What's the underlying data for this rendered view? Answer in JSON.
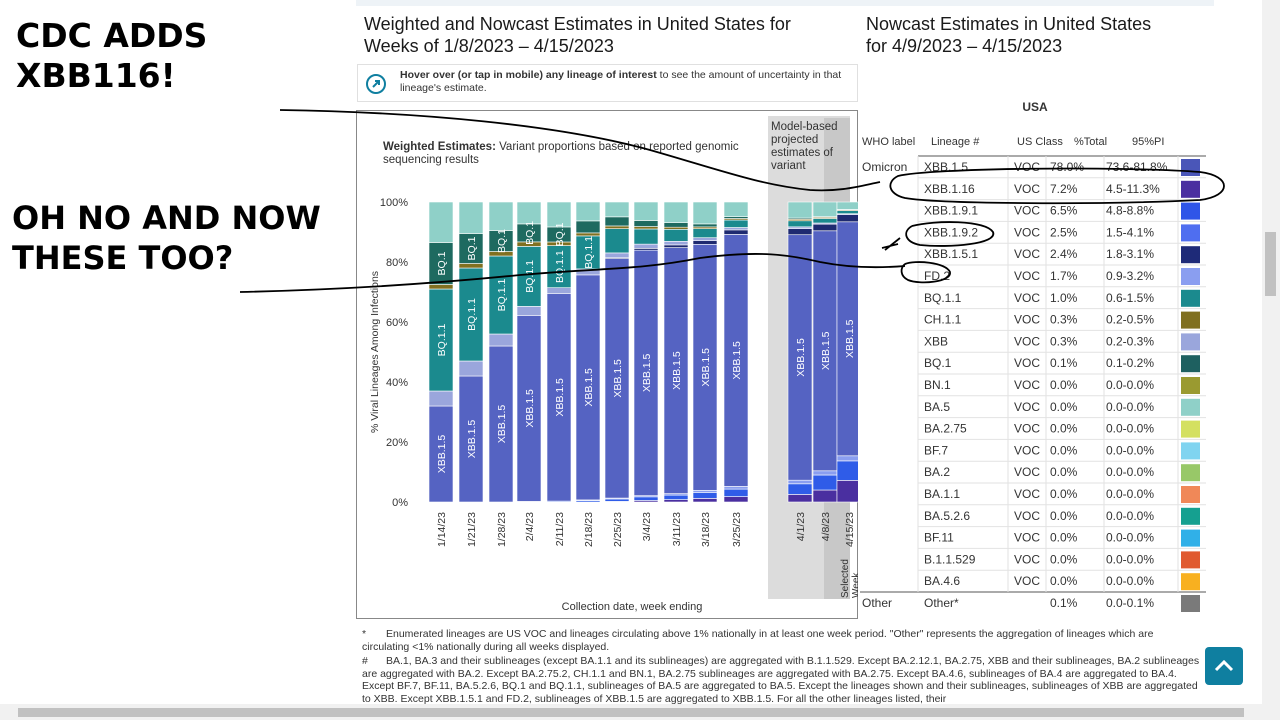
{
  "headline": {
    "line1": "CDC ADDS",
    "line2": "XBB116!",
    "line3": "OH NO AND NOW",
    "line4": "THESE TOO?"
  },
  "left_panel": {
    "title_line1": "Weighted and Nowcast Estimates in United States for",
    "title_line2": "Weeks of 1/8/2023 – 4/15/2023"
  },
  "right_panel": {
    "title_line1": "Nowcast Estimates in United States",
    "title_line2": "for 4/9/2023 – 4/15/2023"
  },
  "info": {
    "icon": "tap-hand-icon",
    "bold": "Hover over (or tap in mobile) any lineage of interest",
    "rest": " to see the amount of uncertainty in that lineage's estimate."
  },
  "chart_data": {
    "type": "bar",
    "subtitle_bold": "Weighted Estimates:",
    "subtitle_rest": " Variant proportions based on reported genomic sequencing results",
    "model_label": "Model-based projected estimates of variant",
    "selected_label": "Selected Week",
    "xlabel": "Collection date, week ending",
    "ylabel": "% Viral Lineages Among Infections",
    "yticks": [
      "0%",
      "20%",
      "40%",
      "60%",
      "80%",
      "100%"
    ],
    "ylim": [
      0,
      100
    ],
    "categories": [
      "1/14/23",
      "1/21/23",
      "1/28/23",
      "2/4/23",
      "2/11/23",
      "2/18/23",
      "2/25/23",
      "3/4/23",
      "3/11/23",
      "3/18/23",
      "3/25/23",
      "4/1/23",
      "4/8/23",
      "4/15/23"
    ],
    "series": [
      {
        "name": "XBB.1.16",
        "color": "#4a2fa0",
        "values": [
          0,
          0,
          0,
          0,
          0,
          0,
          0.2,
          0.5,
          0.8,
          1.2,
          1.8,
          2.5,
          4.0,
          7.2
        ]
      },
      {
        "name": "XBB.1.9.1",
        "color": "#2f5ce8",
        "values": [
          0,
          0,
          0,
          0.2,
          0.3,
          0.5,
          0.8,
          1.2,
          1.5,
          2.0,
          2.5,
          3.5,
          5.0,
          6.5
        ]
      },
      {
        "name": "FD.2",
        "color": "#8a9ef0",
        "values": [
          0,
          0,
          0,
          0,
          0,
          0.2,
          0.3,
          0.4,
          0.5,
          0.7,
          0.9,
          1.2,
          1.4,
          1.7
        ]
      },
      {
        "name": "XBB.1.5",
        "color": "#5563c2",
        "values": [
          32,
          42,
          52,
          62,
          69,
          75,
          79,
          81,
          82,
          82,
          84,
          81,
          80,
          78
        ]
      },
      {
        "name": "XBB.1.5.1",
        "color": "#1e2a70",
        "values": [
          0,
          0,
          0,
          0,
          0,
          0,
          0.3,
          0.6,
          0.9,
          1.2,
          1.5,
          2.0,
          2.2,
          2.4
        ]
      },
      {
        "name": "XBB",
        "color": "#9aa6dc",
        "values": [
          5,
          5,
          4,
          3,
          2,
          2,
          1.6,
          1.4,
          1.2,
          1,
          0.8,
          0.6,
          0.4,
          0.3
        ]
      },
      {
        "name": "BQ.1.1",
        "color": "#1b8a8e",
        "values": [
          34,
          31,
          26,
          20,
          14,
          11,
          8,
          5,
          4,
          3,
          2.5,
          2,
          1.5,
          1.0
        ]
      },
      {
        "name": "CH.1.1",
        "color": "#807020",
        "values": [
          1.5,
          1.5,
          1.5,
          1.5,
          1.2,
          1,
          0.9,
          0.8,
          0.7,
          0.6,
          0.5,
          0.5,
          0.4,
          0.3
        ]
      },
      {
        "name": "BQ.1",
        "color": "#1e6a60",
        "values": [
          14,
          10,
          7,
          6,
          5,
          4,
          3,
          2,
          1.5,
          1,
          0.6,
          0.4,
          0.2,
          0.1
        ]
      },
      {
        "name": "Other",
        "color": "#8fd0c8",
        "values": [
          13.5,
          10.5,
          9.5,
          7.3,
          8.3,
          6.3,
          4.9,
          6.1,
          6.9,
          7.3,
          4.9,
          5.3,
          4.9,
          2.5
        ]
      }
    ]
  },
  "table": {
    "region": "USA",
    "headers": [
      "WHO label",
      "Lineage #",
      "US Class",
      "%Total",
      "95%PI"
    ],
    "rows": [
      {
        "who": "Omicron",
        "lineage": "XBB.1.5",
        "cls": "VOC",
        "pct": "78.0%",
        "pi": "73.6-81.8%",
        "color": "#4a56b8"
      },
      {
        "who": "",
        "lineage": "XBB.1.16",
        "cls": "VOC",
        "pct": "7.2%",
        "pi": "4.5-11.3%",
        "color": "#4b2fa0"
      },
      {
        "who": "",
        "lineage": "XBB.1.9.1",
        "cls": "VOC",
        "pct": "6.5%",
        "pi": "4.8-8.8%",
        "color": "#2f55e8"
      },
      {
        "who": "",
        "lineage": "XBB.1.9.2",
        "cls": "VOC",
        "pct": "2.5%",
        "pi": "1.5-4.1%",
        "color": "#4f6ef0"
      },
      {
        "who": "",
        "lineage": "XBB.1.5.1",
        "cls": "VOC",
        "pct": "2.4%",
        "pi": "1.8-3.1%",
        "color": "#1e2a78"
      },
      {
        "who": "",
        "lineage": "FD.2",
        "cls": "VOC",
        "pct": "1.7%",
        "pi": "0.9-3.2%",
        "color": "#8a9ef0"
      },
      {
        "who": "",
        "lineage": "BQ.1.1",
        "cls": "VOC",
        "pct": "1.0%",
        "pi": "0.6-1.5%",
        "color": "#1b8a8e"
      },
      {
        "who": "",
        "lineage": "CH.1.1",
        "cls": "VOC",
        "pct": "0.3%",
        "pi": "0.2-0.5%",
        "color": "#807020"
      },
      {
        "who": "",
        "lineage": "XBB",
        "cls": "VOC",
        "pct": "0.3%",
        "pi": "0.2-0.3%",
        "color": "#9aa6dc"
      },
      {
        "who": "",
        "lineage": "BQ.1",
        "cls": "VOC",
        "pct": "0.1%",
        "pi": "0.1-0.2%",
        "color": "#1e6060"
      },
      {
        "who": "",
        "lineage": "BN.1",
        "cls": "VOC",
        "pct": "0.0%",
        "pi": "0.0-0.0%",
        "color": "#9a9a30"
      },
      {
        "who": "",
        "lineage": "BA.5",
        "cls": "VOC",
        "pct": "0.0%",
        "pi": "0.0-0.0%",
        "color": "#8fd0c8"
      },
      {
        "who": "",
        "lineage": "BA.2.75",
        "cls": "VOC",
        "pct": "0.0%",
        "pi": "0.0-0.0%",
        "color": "#d4e060"
      },
      {
        "who": "",
        "lineage": "BF.7",
        "cls": "VOC",
        "pct": "0.0%",
        "pi": "0.0-0.0%",
        "color": "#80d4f0"
      },
      {
        "who": "",
        "lineage": "BA.2",
        "cls": "VOC",
        "pct": "0.0%",
        "pi": "0.0-0.0%",
        "color": "#98c868"
      },
      {
        "who": "",
        "lineage": "BA.1.1",
        "cls": "VOC",
        "pct": "0.0%",
        "pi": "0.0-0.0%",
        "color": "#f08858"
      },
      {
        "who": "",
        "lineage": "BA.5.2.6",
        "cls": "VOC",
        "pct": "0.0%",
        "pi": "0.0-0.0%",
        "color": "#15a090"
      },
      {
        "who": "",
        "lineage": "BF.11",
        "cls": "VOC",
        "pct": "0.0%",
        "pi": "0.0-0.0%",
        "color": "#30b0e8"
      },
      {
        "who": "",
        "lineage": "B.1.1.529",
        "cls": "VOC",
        "pct": "0.0%",
        "pi": "0.0-0.0%",
        "color": "#e05a30"
      },
      {
        "who": "",
        "lineage": "BA.4.6",
        "cls": "VOC",
        "pct": "0.0%",
        "pi": "0.0-0.0%",
        "color": "#f8b020"
      },
      {
        "who": "Other",
        "lineage": "Other*",
        "cls": "",
        "pct": "0.1%",
        "pi": "0.0-0.1%",
        "color": "#7a7a7a"
      }
    ]
  },
  "footnotes": {
    "star_mark": "*",
    "star_text": "Enumerated lineages are US VOC and lineages circulating above 1% nationally in at least one week period. \"Other\" represents the aggregation of lineages which are circulating <1% nationally during all weeks displayed.",
    "hash_mark": "#",
    "hash_text": "BA.1, BA.3 and their sublineages (except BA.1.1 and its sublineages) are aggregated with B.1.1.529. Except BA.2.12.1, BA.2.75, XBB and their sublineages, BA.2 sublineages are aggregated with BA.2. Except BA.2.75.2, CH.1.1 and BN.1, BA.2.75 sublineages are aggregated with BA.2.75. Except BA.4.6, sublineages of BA.4 are aggregated to BA.4. Except BF.7, BF.11, BA.5.2.6, BQ.1 and BQ.1.1, sublineages of BA.5 are aggregated to BA.5. Except the lineages shown and their sublineages, sublineages of XBB are aggregated to XBB. Except XBB.1.5.1 and FD.2, sublineages of XBB.1.5 are aggregated to XBB.1.5. For all the other lineages listed, their"
  }
}
